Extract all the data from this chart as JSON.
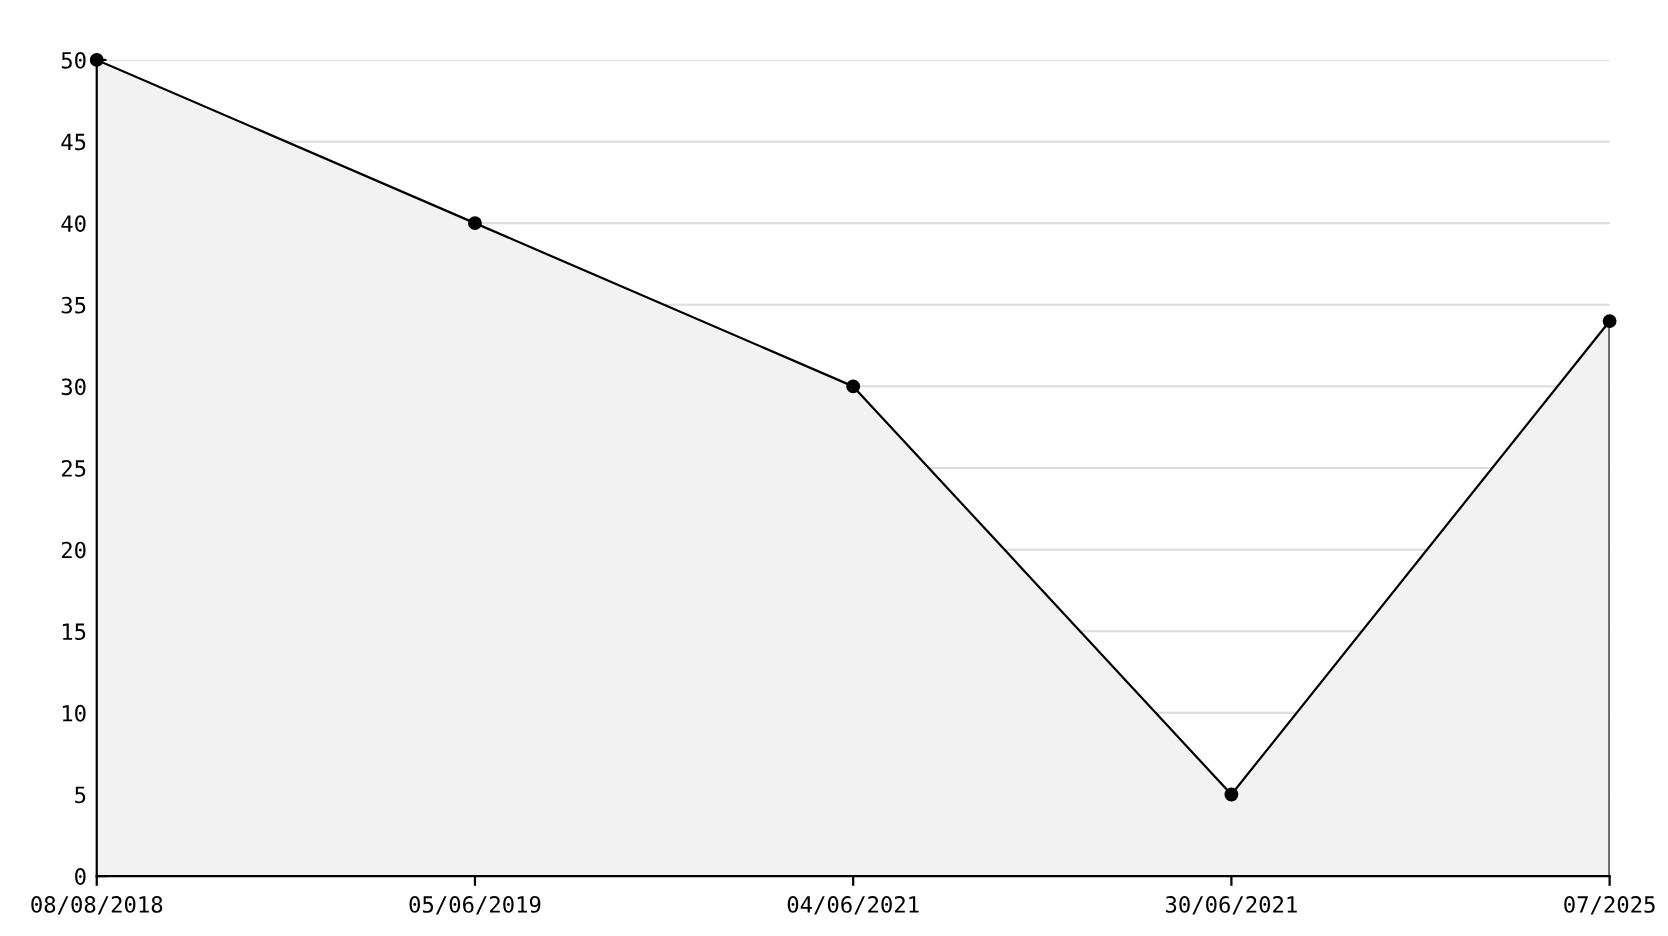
{
  "chart_data": {
    "type": "area",
    "categories": [
      "08/08/2018",
      "05/06/2019",
      "04/06/2021",
      "30/06/2021",
      "07/2025"
    ],
    "series": [
      {
        "color": "#000000",
        "values": [
          50,
          40,
          30,
          5,
          34
        ]
      }
    ],
    "ylim": [
      0,
      50
    ],
    "yticks": [
      0,
      5,
      10,
      15,
      20,
      25,
      30,
      35,
      40,
      45,
      50
    ],
    "grid": "y",
    "marker": "circle",
    "line_style": "solid"
  }
}
